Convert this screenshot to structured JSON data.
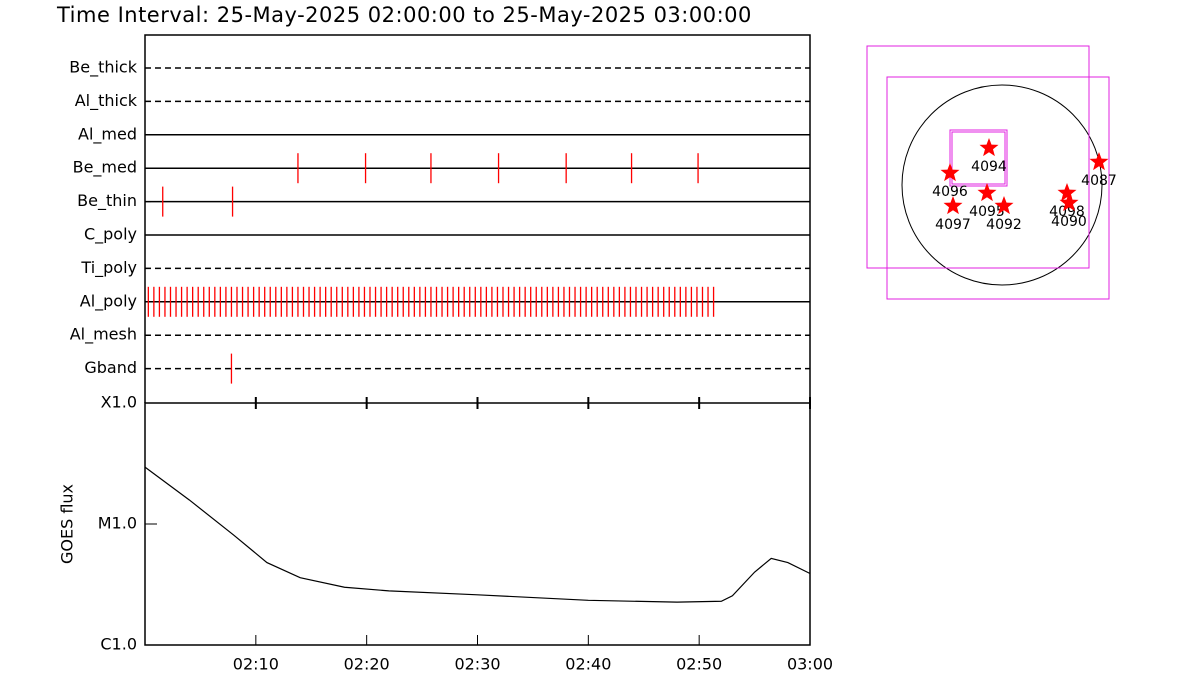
{
  "title": "Time Interval: 25-May-2025 02:00:00 to 25-May-2025 03:00:00",
  "chart_data": [
    {
      "type": "timeline",
      "xlim": [
        0,
        60
      ],
      "color": "#ff0000",
      "rows": [
        {
          "name": "Be_thick",
          "style": "dashed",
          "events": []
        },
        {
          "name": "Al_thick",
          "style": "dashed",
          "events": []
        },
        {
          "name": "Al_med",
          "style": "solid",
          "events": []
        },
        {
          "name": "Be_med",
          "style": "solid",
          "events": [
            13.8,
            19.9,
            25.8,
            31.9,
            38.0,
            43.9,
            49.9
          ]
        },
        {
          "name": "Be_thin",
          "style": "solid",
          "events": [
            1.6,
            7.9
          ]
        },
        {
          "name": "C_poly",
          "style": "solid",
          "events": []
        },
        {
          "name": "Ti_poly",
          "style": "dashed",
          "events": []
        },
        {
          "name": "Al_poly",
          "style": "solid",
          "events": [
            0.3,
            0.8,
            1.3,
            1.8,
            2.3,
            2.8,
            3.3,
            3.8,
            4.3,
            4.8,
            5.3,
            5.8,
            6.3,
            6.8,
            7.3,
            7.8,
            8.3,
            8.8,
            9.3,
            9.8,
            10.3,
            10.8,
            11.3,
            11.8,
            12.3,
            12.8,
            13.3,
            13.8,
            14.3,
            14.8,
            15.3,
            15.8,
            16.3,
            16.8,
            17.3,
            17.8,
            18.3,
            18.8,
            19.3,
            19.8,
            20.3,
            20.8,
            21.3,
            21.8,
            22.3,
            22.8,
            23.3,
            23.8,
            24.3,
            24.8,
            25.3,
            25.8,
            26.3,
            26.8,
            27.3,
            27.8,
            28.3,
            28.8,
            29.3,
            29.8,
            30.3,
            30.8,
            31.3,
            31.8,
            32.3,
            32.8,
            33.3,
            33.8,
            34.3,
            34.8,
            35.3,
            35.8,
            36.3,
            36.8,
            37.3,
            37.8,
            38.3,
            38.8,
            39.3,
            39.8,
            40.3,
            40.8,
            41.3,
            41.8,
            42.3,
            42.8,
            43.3,
            43.8,
            44.3,
            44.8,
            45.3,
            45.8,
            46.3,
            46.8,
            47.3,
            47.8,
            48.3,
            48.8,
            49.3,
            49.8,
            50.3,
            50.8,
            51.3
          ]
        },
        {
          "name": "Al_mesh",
          "style": "dashed",
          "events": []
        },
        {
          "name": "Gband",
          "style": "dashed",
          "events": [
            7.8
          ]
        }
      ]
    },
    {
      "type": "line",
      "y_label": "GOES flux",
      "log_scale": true,
      "color": "#000000",
      "x": [
        0,
        4,
        8,
        11,
        14,
        18,
        22,
        30,
        40,
        48,
        52,
        53,
        55,
        56.5,
        58,
        60
      ],
      "values": [
        2.95e-05,
        1.58e-05,
        8.1e-06,
        4.8e-06,
        3.6e-06,
        3e-06,
        2.8e-06,
        2.6e-06,
        2.34e-06,
        2.26e-06,
        2.3e-06,
        2.55e-06,
        4e-06,
        5.2e-06,
        4.8e-06,
        3.9e-06
      ],
      "xlim": [
        0,
        60
      ],
      "xticks": [
        {
          "value": 10,
          "label": "02:10"
        },
        {
          "value": 20,
          "label": "02:20"
        },
        {
          "value": 30,
          "label": "02:30"
        },
        {
          "value": 40,
          "label": "02:40"
        },
        {
          "value": 50,
          "label": "02:50"
        },
        {
          "value": 60,
          "label": "03:00"
        }
      ],
      "ylim": [
        1e-06,
        0.0001
      ],
      "yticks": [
        {
          "value": 1e-06,
          "label": "C1.0"
        },
        {
          "value": 1e-05,
          "label": "M1.0"
        },
        {
          "value": 0.0001,
          "label": "X1.0"
        }
      ]
    }
  ],
  "map": {
    "regions": [
      {
        "label": "4094"
      },
      {
        "label": "4096"
      },
      {
        "label": "4095"
      },
      {
        "label": "4097"
      },
      {
        "label": "4092"
      },
      {
        "label": "4098"
      },
      {
        "label": "4090"
      },
      {
        "label": "4087"
      }
    ]
  }
}
